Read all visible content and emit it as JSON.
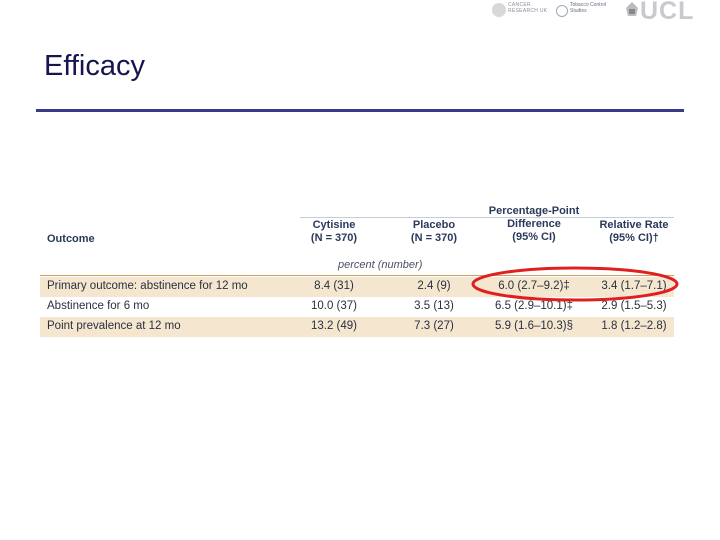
{
  "slide": {
    "title": "Efficacy"
  },
  "logos": {
    "cancer_research": "CANCER RESEARCH UK",
    "tobacco": "Tobacco Control Studies",
    "ucl": "UCL"
  },
  "table": {
    "headers": {
      "outcome": "Outcome",
      "cytisine": [
        "Cytisine",
        "(N = 370)"
      ],
      "placebo": [
        "Placebo",
        "(N = 370)"
      ],
      "difference": [
        "Percentage-Point",
        "Difference",
        "(95% CI)"
      ],
      "relative_rate": [
        "Relative Rate",
        "(95% CI)†"
      ]
    },
    "units_label": "percent (number)",
    "rows": [
      {
        "outcome": "Primary outcome: abstinence for 12 mo",
        "cytisine": "8.4 (31)",
        "placebo": "2.4 (9)",
        "difference": "6.0 (2.7–9.2)‡",
        "relative_rate": "3.4 (1.7–7.1)"
      },
      {
        "outcome": "Abstinence for 6 mo",
        "cytisine": "10.0 (37)",
        "placebo": "3.5 (13)",
        "difference": "6.5 (2.9–10.1)‡",
        "relative_rate": "2.9 (1.5–5.3)"
      },
      {
        "outcome": "Point prevalence at 12 mo",
        "cytisine": "13.2 (49)",
        "placebo": "7.3 (27)",
        "difference": "5.9 (1.6–10.3)§",
        "relative_rate": "1.8 (1.2–2.8)"
      }
    ]
  },
  "colors": {
    "highlight_circle": "#e02020",
    "title": "#151550",
    "rule": "#3a3a8a",
    "row_shade": "#f4e6cf"
  }
}
